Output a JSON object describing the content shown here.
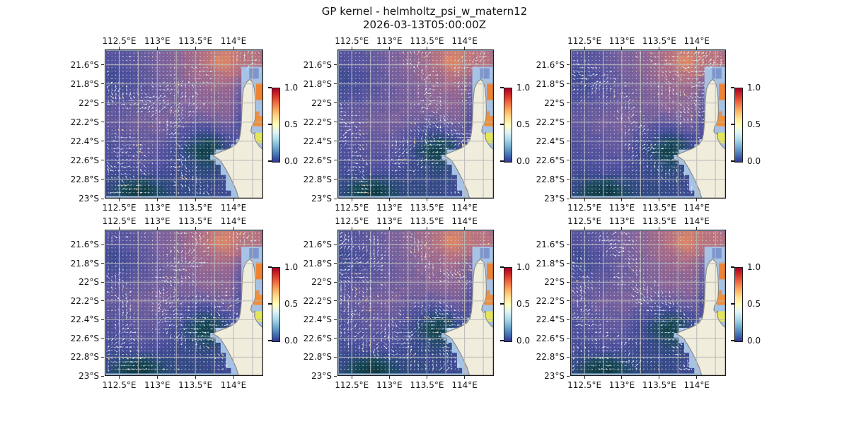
{
  "figure": {
    "title": "GP kernel - helmholtz_psi_w_matern12",
    "subtitle": "2026-03-13T05:00:00Z",
    "background_color": "#ffffff"
  },
  "chart_data": {
    "type": "heatmap",
    "title": "GP kernel - helmholtz_psi_w_matern12",
    "subtitle": "2026-03-13T05:00:00Z",
    "grid_layout": {
      "rows": 2,
      "cols": 3,
      "note": "six nearly identical map panels of a scalar field with overlaid quiver arrows off the North West Cape / Exmouth Gulf coast"
    },
    "panels": [
      {
        "row": 0,
        "col": 0
      },
      {
        "row": 0,
        "col": 1
      },
      {
        "row": 0,
        "col": 2
      },
      {
        "row": 1,
        "col": 0
      },
      {
        "row": 1,
        "col": 1
      },
      {
        "row": 1,
        "col": 2
      }
    ],
    "x_axis": {
      "ticks": [
        {
          "lon": 112.5,
          "label": "112.5°E"
        },
        {
          "lon": 113.0,
          "label": "113°E"
        },
        {
          "lon": 113.5,
          "label": "113.5°E"
        },
        {
          "lon": 114.0,
          "label": "114°E"
        }
      ],
      "range_lon_e": [
        112.31,
        114.39
      ],
      "gridline_step_deg": 0.25,
      "labels_on": "top and bottom of every panel"
    },
    "y_axis": {
      "ticks": [
        {
          "lat": 21.6,
          "label": "21.6°S"
        },
        {
          "lat": 21.8,
          "label": "21.8°S"
        },
        {
          "lat": 22.0,
          "label": "22°S"
        },
        {
          "lat": 22.2,
          "label": "22.2°S"
        },
        {
          "lat": 22.4,
          "label": "22.4°S"
        },
        {
          "lat": 22.6,
          "label": "22.6°S"
        },
        {
          "lat": 22.8,
          "label": "22.8°S"
        },
        {
          "lat": 23.0,
          "label": "23°S"
        }
      ],
      "range_lat_s": [
        21.44,
        23.0
      ],
      "gridline_step_deg": 0.2,
      "labels_on": "left of every panel"
    },
    "colorbar": {
      "tick_labels": [
        "1.0",
        "0.5",
        "0.0"
      ],
      "vmin": 0.0,
      "vmax": 1.0,
      "cmap_name": "RdYlBu_r",
      "gradient_stops_bottom_to_top": [
        "#313695",
        "#4575b4",
        "#74add1",
        "#abd9e9",
        "#e0f3f8",
        "#ffffbf",
        "#fee090",
        "#fdae61",
        "#f46d43",
        "#d73027",
        "#a50026"
      ]
    },
    "field": {
      "description": "normalized scalar field 0-1 estimated from pixel colors; 16 cols (west-east) x 14 rows (north-south); same field shown in all six panels",
      "values": [
        [
          0.42,
          0.44,
          0.45,
          0.47,
          0.5,
          0.54,
          0.58,
          0.62,
          0.66,
          0.7,
          0.75,
          0.82,
          0.8,
          0.76,
          0.74,
          0.72
        ],
        [
          0.4,
          0.42,
          0.43,
          0.46,
          0.49,
          0.53,
          0.57,
          0.61,
          0.66,
          0.72,
          0.8,
          0.92,
          0.84,
          0.78,
          0.75,
          0.73
        ],
        [
          0.35,
          0.36,
          0.39,
          0.43,
          0.47,
          0.51,
          0.55,
          0.59,
          0.63,
          0.67,
          0.72,
          0.78,
          0.76,
          0.72,
          0.71,
          0.72
        ],
        [
          0.33,
          0.34,
          0.37,
          0.41,
          0.45,
          0.49,
          0.53,
          0.56,
          0.59,
          0.62,
          0.65,
          0.68,
          0.66,
          0.52,
          0.6,
          0.62
        ],
        [
          0.37,
          0.38,
          0.4,
          0.43,
          0.46,
          0.49,
          0.52,
          0.54,
          0.56,
          0.59,
          0.61,
          0.63,
          0.62,
          0.45,
          0.58,
          0.58
        ],
        [
          0.43,
          0.44,
          0.46,
          0.48,
          0.5,
          0.52,
          0.53,
          0.55,
          0.56,
          0.58,
          0.59,
          0.61,
          0.6,
          0.42,
          0.55,
          0.55
        ],
        [
          0.46,
          0.48,
          0.5,
          0.52,
          0.53,
          0.54,
          0.54,
          0.53,
          0.51,
          0.5,
          0.52,
          0.55,
          0.55,
          0.4,
          0.52,
          0.52
        ],
        [
          0.44,
          0.46,
          0.48,
          0.5,
          0.52,
          0.52,
          0.5,
          0.46,
          0.42,
          0.38,
          0.4,
          0.45,
          0.48,
          0.38,
          0.5,
          0.5
        ],
        [
          0.4,
          0.42,
          0.44,
          0.46,
          0.48,
          0.48,
          0.44,
          0.38,
          0.3,
          0.22,
          0.18,
          0.26,
          0.36,
          0.4,
          0.46,
          0.46
        ],
        [
          0.38,
          0.4,
          0.42,
          0.44,
          0.45,
          0.44,
          0.4,
          0.33,
          0.22,
          0.12,
          0.1,
          0.19,
          0.3,
          0.38,
          0.42,
          0.42
        ],
        [
          0.36,
          0.38,
          0.4,
          0.42,
          0.42,
          0.4,
          0.38,
          0.34,
          0.28,
          0.22,
          0.2,
          0.26,
          0.32,
          0.36,
          0.38,
          0.38
        ],
        [
          0.34,
          0.34,
          0.36,
          0.38,
          0.38,
          0.36,
          0.34,
          0.32,
          0.3,
          0.28,
          0.28,
          0.3,
          0.33,
          0.35,
          0.36,
          0.36
        ],
        [
          0.3,
          0.25,
          0.18,
          0.13,
          0.15,
          0.22,
          0.28,
          0.3,
          0.3,
          0.3,
          0.3,
          0.32,
          0.34,
          0.35,
          0.35,
          0.35
        ],
        [
          0.27,
          0.18,
          0.08,
          0.05,
          0.09,
          0.17,
          0.24,
          0.27,
          0.28,
          0.28,
          0.3,
          0.32,
          0.33,
          0.34,
          0.34,
          0.34
        ]
      ]
    },
    "field_cmap_stops": [
      [
        0.0,
        "#0d2e36"
      ],
      [
        0.08,
        "#123c46"
      ],
      [
        0.16,
        "#1a4a58"
      ],
      [
        0.24,
        "#2c4a78"
      ],
      [
        0.32,
        "#3d4b90"
      ],
      [
        0.4,
        "#51519d"
      ],
      [
        0.48,
        "#675b9e"
      ],
      [
        0.56,
        "#80639b"
      ],
      [
        0.64,
        "#97678f"
      ],
      [
        0.72,
        "#ae6e85"
      ],
      [
        0.8,
        "#c57a76"
      ],
      [
        0.88,
        "#dd8767"
      ],
      [
        0.94,
        "#eb9257"
      ],
      [
        1.0,
        "#f59e4d"
      ]
    ],
    "quiver": {
      "arrow_color": "#e9f3fb",
      "warm_arrow_color": "#ffd9a0",
      "dot_color": "#8ca6cf",
      "description": "dense regular grid of small flow arrows over the ocean field; arrows differ slightly between panels"
    },
    "geo": {
      "land_color": "#f0eddc",
      "coast_line_color": "#8a8a8a",
      "shallow_water_color": "#a6c3e6",
      "grid_line_color": "#b9b9b9",
      "land_polygon": [
        [
          0.915,
          0.2
        ],
        [
          0.935,
          0.222
        ],
        [
          0.945,
          0.268
        ],
        [
          0.95,
          0.33
        ],
        [
          0.952,
          0.4
        ],
        [
          0.95,
          0.462
        ],
        [
          0.94,
          0.5
        ],
        [
          0.928,
          0.515
        ],
        [
          0.922,
          0.548
        ],
        [
          0.934,
          0.568
        ],
        [
          0.948,
          0.558
        ],
        [
          0.944,
          0.59
        ],
        [
          0.955,
          0.618
        ],
        [
          0.976,
          0.65
        ],
        [
          1.0,
          0.672
        ],
        [
          1.0,
          1.0
        ],
        [
          0.845,
          1.0
        ],
        [
          0.83,
          0.945
        ],
        [
          0.8,
          0.875
        ],
        [
          0.765,
          0.805
        ],
        [
          0.73,
          0.745
        ],
        [
          0.7,
          0.722
        ],
        [
          0.683,
          0.715
        ],
        [
          0.7,
          0.7
        ],
        [
          0.74,
          0.683
        ],
        [
          0.79,
          0.662
        ],
        [
          0.828,
          0.636
        ],
        [
          0.848,
          0.605
        ],
        [
          0.856,
          0.565
        ],
        [
          0.862,
          0.5
        ],
        [
          0.865,
          0.42
        ],
        [
          0.868,
          0.34
        ],
        [
          0.875,
          0.265
        ],
        [
          0.893,
          0.222
        ]
      ],
      "shallow_polygon": [
        [
          0.85,
          0.148
        ],
        [
          0.876,
          0.12
        ],
        [
          0.912,
          0.125
        ],
        [
          0.95,
          0.1
        ],
        [
          1.0,
          0.112
        ],
        [
          1.0,
          1.0
        ],
        [
          0.79,
          1.0
        ],
        [
          0.778,
          0.928
        ],
        [
          0.748,
          0.856
        ],
        [
          0.715,
          0.79
        ],
        [
          0.685,
          0.735
        ],
        [
          0.662,
          0.708
        ],
        [
          0.695,
          0.69
        ],
        [
          0.745,
          0.672
        ],
        [
          0.795,
          0.654
        ],
        [
          0.83,
          0.628
        ],
        [
          0.848,
          0.588
        ],
        [
          0.852,
          0.46
        ],
        [
          0.85,
          0.3
        ]
      ],
      "shallow_patches": [
        {
          "x": 0.955,
          "y": 0.225,
          "w": 0.045,
          "h": 0.115,
          "color": "#ed8435"
        },
        {
          "x": 0.945,
          "y": 0.415,
          "w": 0.03,
          "h": 0.03,
          "color": "#e09152"
        },
        {
          "x": 0.94,
          "y": 0.445,
          "w": 0.058,
          "h": 0.07,
          "color": "#ef8f3a"
        },
        {
          "x": 0.95,
          "y": 0.558,
          "w": 0.045,
          "h": 0.07,
          "color": "#e3e55c"
        },
        {
          "x": 0.912,
          "y": 0.126,
          "w": 0.06,
          "h": 0.07,
          "color": "#7d95cc"
        }
      ]
    }
  }
}
